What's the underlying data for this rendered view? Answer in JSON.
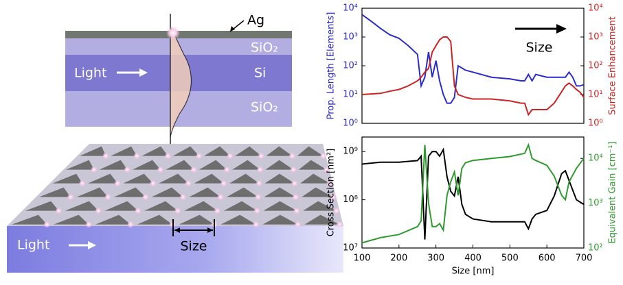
{
  "illustration": {
    "metal": "Ag",
    "upper_cladding": "SiO₂",
    "core": "Si",
    "lower_cladding": "SiO₂",
    "light_labels": [
      "Light",
      "Light"
    ],
    "size_label": "Size"
  },
  "chart_data": [
    {
      "type": "line",
      "log": true,
      "annotation": "Size",
      "x": [
        100,
        125,
        150,
        175,
        200,
        225,
        250,
        260,
        270,
        280,
        290,
        300,
        310,
        320,
        330,
        340,
        350,
        360,
        380,
        400,
        450,
        500,
        530,
        540,
        550,
        560,
        570,
        600,
        620,
        650,
        660,
        670,
        680,
        690,
        700
      ],
      "xlim": [
        100,
        700
      ],
      "ylim": [
        1,
        10000
      ],
      "yticks": [
        {
          "value": 1,
          "label": "10⁰"
        },
        {
          "value": 10,
          "label": "10¹"
        },
        {
          "value": 100,
          "label": "10²"
        },
        {
          "value": 1000,
          "label": "10³"
        },
        {
          "value": 10000,
          "label": "10⁴"
        }
      ],
      "ylabel": "Prop. Length [Elements]",
      "y2lim": [
        1,
        10000
      ],
      "y2ticks": [
        {
          "value": 1,
          "label": "10⁰"
        },
        {
          "value": 10,
          "label": "10¹"
        },
        {
          "value": 100,
          "label": "10²"
        },
        {
          "value": 1000,
          "label": "10³"
        },
        {
          "value": 10000,
          "label": "10⁴"
        }
      ],
      "y2label": "Surface Enhancement",
      "series": [
        {
          "color": "#2b2bc8",
          "values": [
            6000,
            3500,
            2000,
            1200,
            900,
            500,
            250,
            20,
            40,
            300,
            40,
            150,
            30,
            10,
            5,
            5,
            8,
            100,
            70,
            60,
            40,
            35,
            30,
            30,
            50,
            30,
            50,
            40,
            40,
            40,
            60,
            40,
            20,
            20,
            22
          ]
        },
        {
          "color": "#cc2222",
          "axis": "y2",
          "values": [
            10,
            10.5,
            11,
            13,
            15,
            20,
            30,
            40,
            60,
            80,
            300,
            500,
            800,
            1000,
            1000,
            700,
            20,
            10,
            8,
            7,
            7,
            6,
            5,
            5,
            2,
            3,
            3,
            3,
            5,
            20,
            25,
            20,
            15,
            12,
            8
          ]
        }
      ]
    },
    {
      "type": "line",
      "log": true,
      "x": [
        100,
        150,
        200,
        250,
        260,
        270,
        280,
        290,
        300,
        310,
        320,
        330,
        340,
        350,
        360,
        370,
        380,
        400,
        450,
        500,
        540,
        550,
        560,
        570,
        600,
        620,
        640,
        650,
        660,
        680,
        700
      ],
      "xlim": [
        100,
        700
      ],
      "xticks": [
        100,
        200,
        300,
        400,
        500,
        600,
        700
      ],
      "xlabel": "Size [nm]",
      "ylim": [
        10000000,
        2000000000
      ],
      "yticks": [
        {
          "value": 10000000,
          "label": "10⁷"
        },
        {
          "value": 100000000,
          "label": "10⁸"
        },
        {
          "value": 1000000000,
          "label": "10⁹"
        }
      ],
      "ylabel": "Cross Section [nm²]",
      "y2lim": [
        100,
        30000
      ],
      "y2ticks": [
        {
          "value": 100,
          "label": "10²"
        },
        {
          "value": 1000,
          "label": "10³"
        },
        {
          "value": 10000,
          "label": "10⁴"
        }
      ],
      "y2label": "Equivalent Gain [cm⁻¹]",
      "series": [
        {
          "color": "#000000",
          "values": [
            550000000,
            600000000,
            600000000,
            650000000,
            800000000,
            15000000,
            800000000,
            1000000000,
            1000000000,
            800000000,
            1100000000,
            300000000,
            150000000,
            120000000,
            300000000,
            80000000,
            50000000,
            40000000,
            35000000,
            35000000,
            35000000,
            25000000,
            40000000,
            50000000,
            60000000,
            120000000,
            350000000,
            400000000,
            250000000,
            100000000,
            80000000
          ]
        },
        {
          "color": "#2e9a2e",
          "axis": "y2",
          "values": [
            130,
            170,
            200,
            300,
            400,
            20000,
            1000,
            300,
            300,
            350,
            250,
            1500,
            3000,
            5000,
            1500,
            6000,
            8000,
            9000,
            10000,
            11000,
            13000,
            20000,
            10000,
            9000,
            7000,
            4000,
            1500,
            1200,
            3000,
            6000,
            10000
          ]
        }
      ]
    }
  ]
}
